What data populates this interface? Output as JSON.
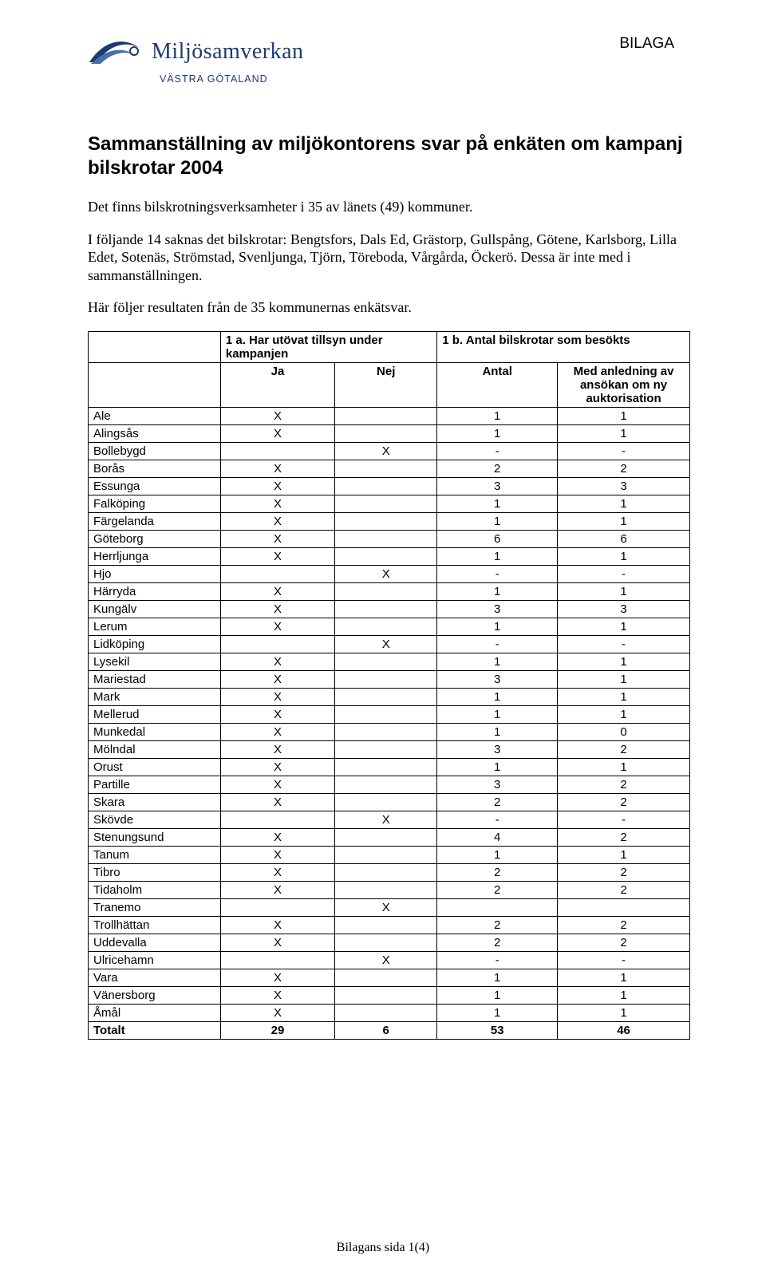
{
  "header": {
    "logo_main": "Miljösamverkan",
    "logo_sub": "VÄSTRA GÖTALAND",
    "attachment_label": "BILAGA"
  },
  "title": "Sammanställning av miljökontorens svar på enkäten om kampanj bilskrotar 2004",
  "paragraphs": {
    "p1": "Det finns bilskrotningsverksamheter i 35 av länets (49) kommuner.",
    "p2": "I följande 14 saknas det bilskrotar: Bengtsfors, Dals Ed, Grästorp, Gullspång, Götene, Karlsborg, Lilla Edet, Sotenäs, Strömstad, Svenljunga, Tjörn, Töreboda, Vårgårda, Öckerö. Dessa är inte med i sammanställningen.",
    "p3": "Här följer resultaten från de 35 kommunernas enkätsvar."
  },
  "table": {
    "group_header_1a": "1 a. Har utövat tillsyn under kampanjen",
    "group_header_1b": "1 b. Antal bilskrotar som besökts",
    "col_ja": "Ja",
    "col_nej": "Nej",
    "col_antal": "Antal",
    "col_med": "Med anledning av ansökan om ny auktorisation",
    "rows": [
      {
        "name": "Ale",
        "ja": "X",
        "nej": "",
        "antal": "1",
        "med": "1"
      },
      {
        "name": "Alingsås",
        "ja": "X",
        "nej": "",
        "antal": "1",
        "med": "1"
      },
      {
        "name": "Bollebygd",
        "ja": "",
        "nej": "X",
        "antal": "-",
        "med": "-"
      },
      {
        "name": "Borås",
        "ja": "X",
        "nej": "",
        "antal": "2",
        "med": "2"
      },
      {
        "name": "Essunga",
        "ja": "X",
        "nej": "",
        "antal": "3",
        "med": "3"
      },
      {
        "name": "Falköping",
        "ja": "X",
        "nej": "",
        "antal": "1",
        "med": "1"
      },
      {
        "name": "Färgelanda",
        "ja": "X",
        "nej": "",
        "antal": "1",
        "med": "1"
      },
      {
        "name": "Göteborg",
        "ja": "X",
        "nej": "",
        "antal": "6",
        "med": "6"
      },
      {
        "name": "Herrljunga",
        "ja": "X",
        "nej": "",
        "antal": "1",
        "med": "1"
      },
      {
        "name": "Hjo",
        "ja": "",
        "nej": "X",
        "antal": "-",
        "med": "-"
      },
      {
        "name": "Härryda",
        "ja": "X",
        "nej": "",
        "antal": "1",
        "med": "1"
      },
      {
        "name": "Kungälv",
        "ja": "X",
        "nej": "",
        "antal": "3",
        "med": "3"
      },
      {
        "name": "Lerum",
        "ja": "X",
        "nej": "",
        "antal": "1",
        "med": "1"
      },
      {
        "name": "Lidköping",
        "ja": "",
        "nej": "X",
        "antal": "-",
        "med": "-"
      },
      {
        "name": "Lysekil",
        "ja": "X",
        "nej": "",
        "antal": "1",
        "med": "1"
      },
      {
        "name": "Mariestad",
        "ja": "X",
        "nej": "",
        "antal": "3",
        "med": "1"
      },
      {
        "name": "Mark",
        "ja": "X",
        "nej": "",
        "antal": "1",
        "med": "1"
      },
      {
        "name": "Mellerud",
        "ja": "X",
        "nej": "",
        "antal": "1",
        "med": "1"
      },
      {
        "name": "Munkedal",
        "ja": "X",
        "nej": "",
        "antal": "1",
        "med": "0"
      },
      {
        "name": "Mölndal",
        "ja": "X",
        "nej": "",
        "antal": "3",
        "med": "2"
      },
      {
        "name": "Orust",
        "ja": "X",
        "nej": "",
        "antal": "1",
        "med": "1"
      },
      {
        "name": "Partille",
        "ja": "X",
        "nej": "",
        "antal": "3",
        "med": "2"
      },
      {
        "name": "Skara",
        "ja": "X",
        "nej": "",
        "antal": "2",
        "med": "2"
      },
      {
        "name": "Skövde",
        "ja": "",
        "nej": "X",
        "antal": "-",
        "med": "-"
      },
      {
        "name": "Stenungsund",
        "ja": "X",
        "nej": "",
        "antal": "4",
        "med": "2"
      },
      {
        "name": "Tanum",
        "ja": "X",
        "nej": "",
        "antal": "1",
        "med": "1"
      },
      {
        "name": "Tibro",
        "ja": "X",
        "nej": "",
        "antal": "2",
        "med": "2"
      },
      {
        "name": "Tidaholm",
        "ja": "X",
        "nej": "",
        "antal": "2",
        "med": "2"
      },
      {
        "name": "Tranemo",
        "ja": "",
        "nej": "X",
        "antal": "",
        "med": ""
      },
      {
        "name": "Trollhättan",
        "ja": "X",
        "nej": "",
        "antal": "2",
        "med": "2"
      },
      {
        "name": "Uddevalla",
        "ja": "X",
        "nej": "",
        "antal": "2",
        "med": "2"
      },
      {
        "name": "Ulricehamn",
        "ja": "",
        "nej": "X",
        "antal": "-",
        "med": "-"
      },
      {
        "name": "Vara",
        "ja": "X",
        "nej": "",
        "antal": "1",
        "med": "1"
      },
      {
        "name": "Vänersborg",
        "ja": "X",
        "nej": "",
        "antal": "1",
        "med": "1"
      },
      {
        "name": "Åmål",
        "ja": "X",
        "nej": "",
        "antal": "1",
        "med": "1"
      }
    ],
    "total": {
      "name": "Totalt",
      "ja": "29",
      "nej": "6",
      "antal": "53",
      "med": "46"
    }
  },
  "footer": "Bilagans sida 1(4)",
  "style": {
    "logo_color": "#1f3a6e",
    "text_color": "#000000",
    "background": "#ffffff",
    "border_color": "#000000"
  }
}
